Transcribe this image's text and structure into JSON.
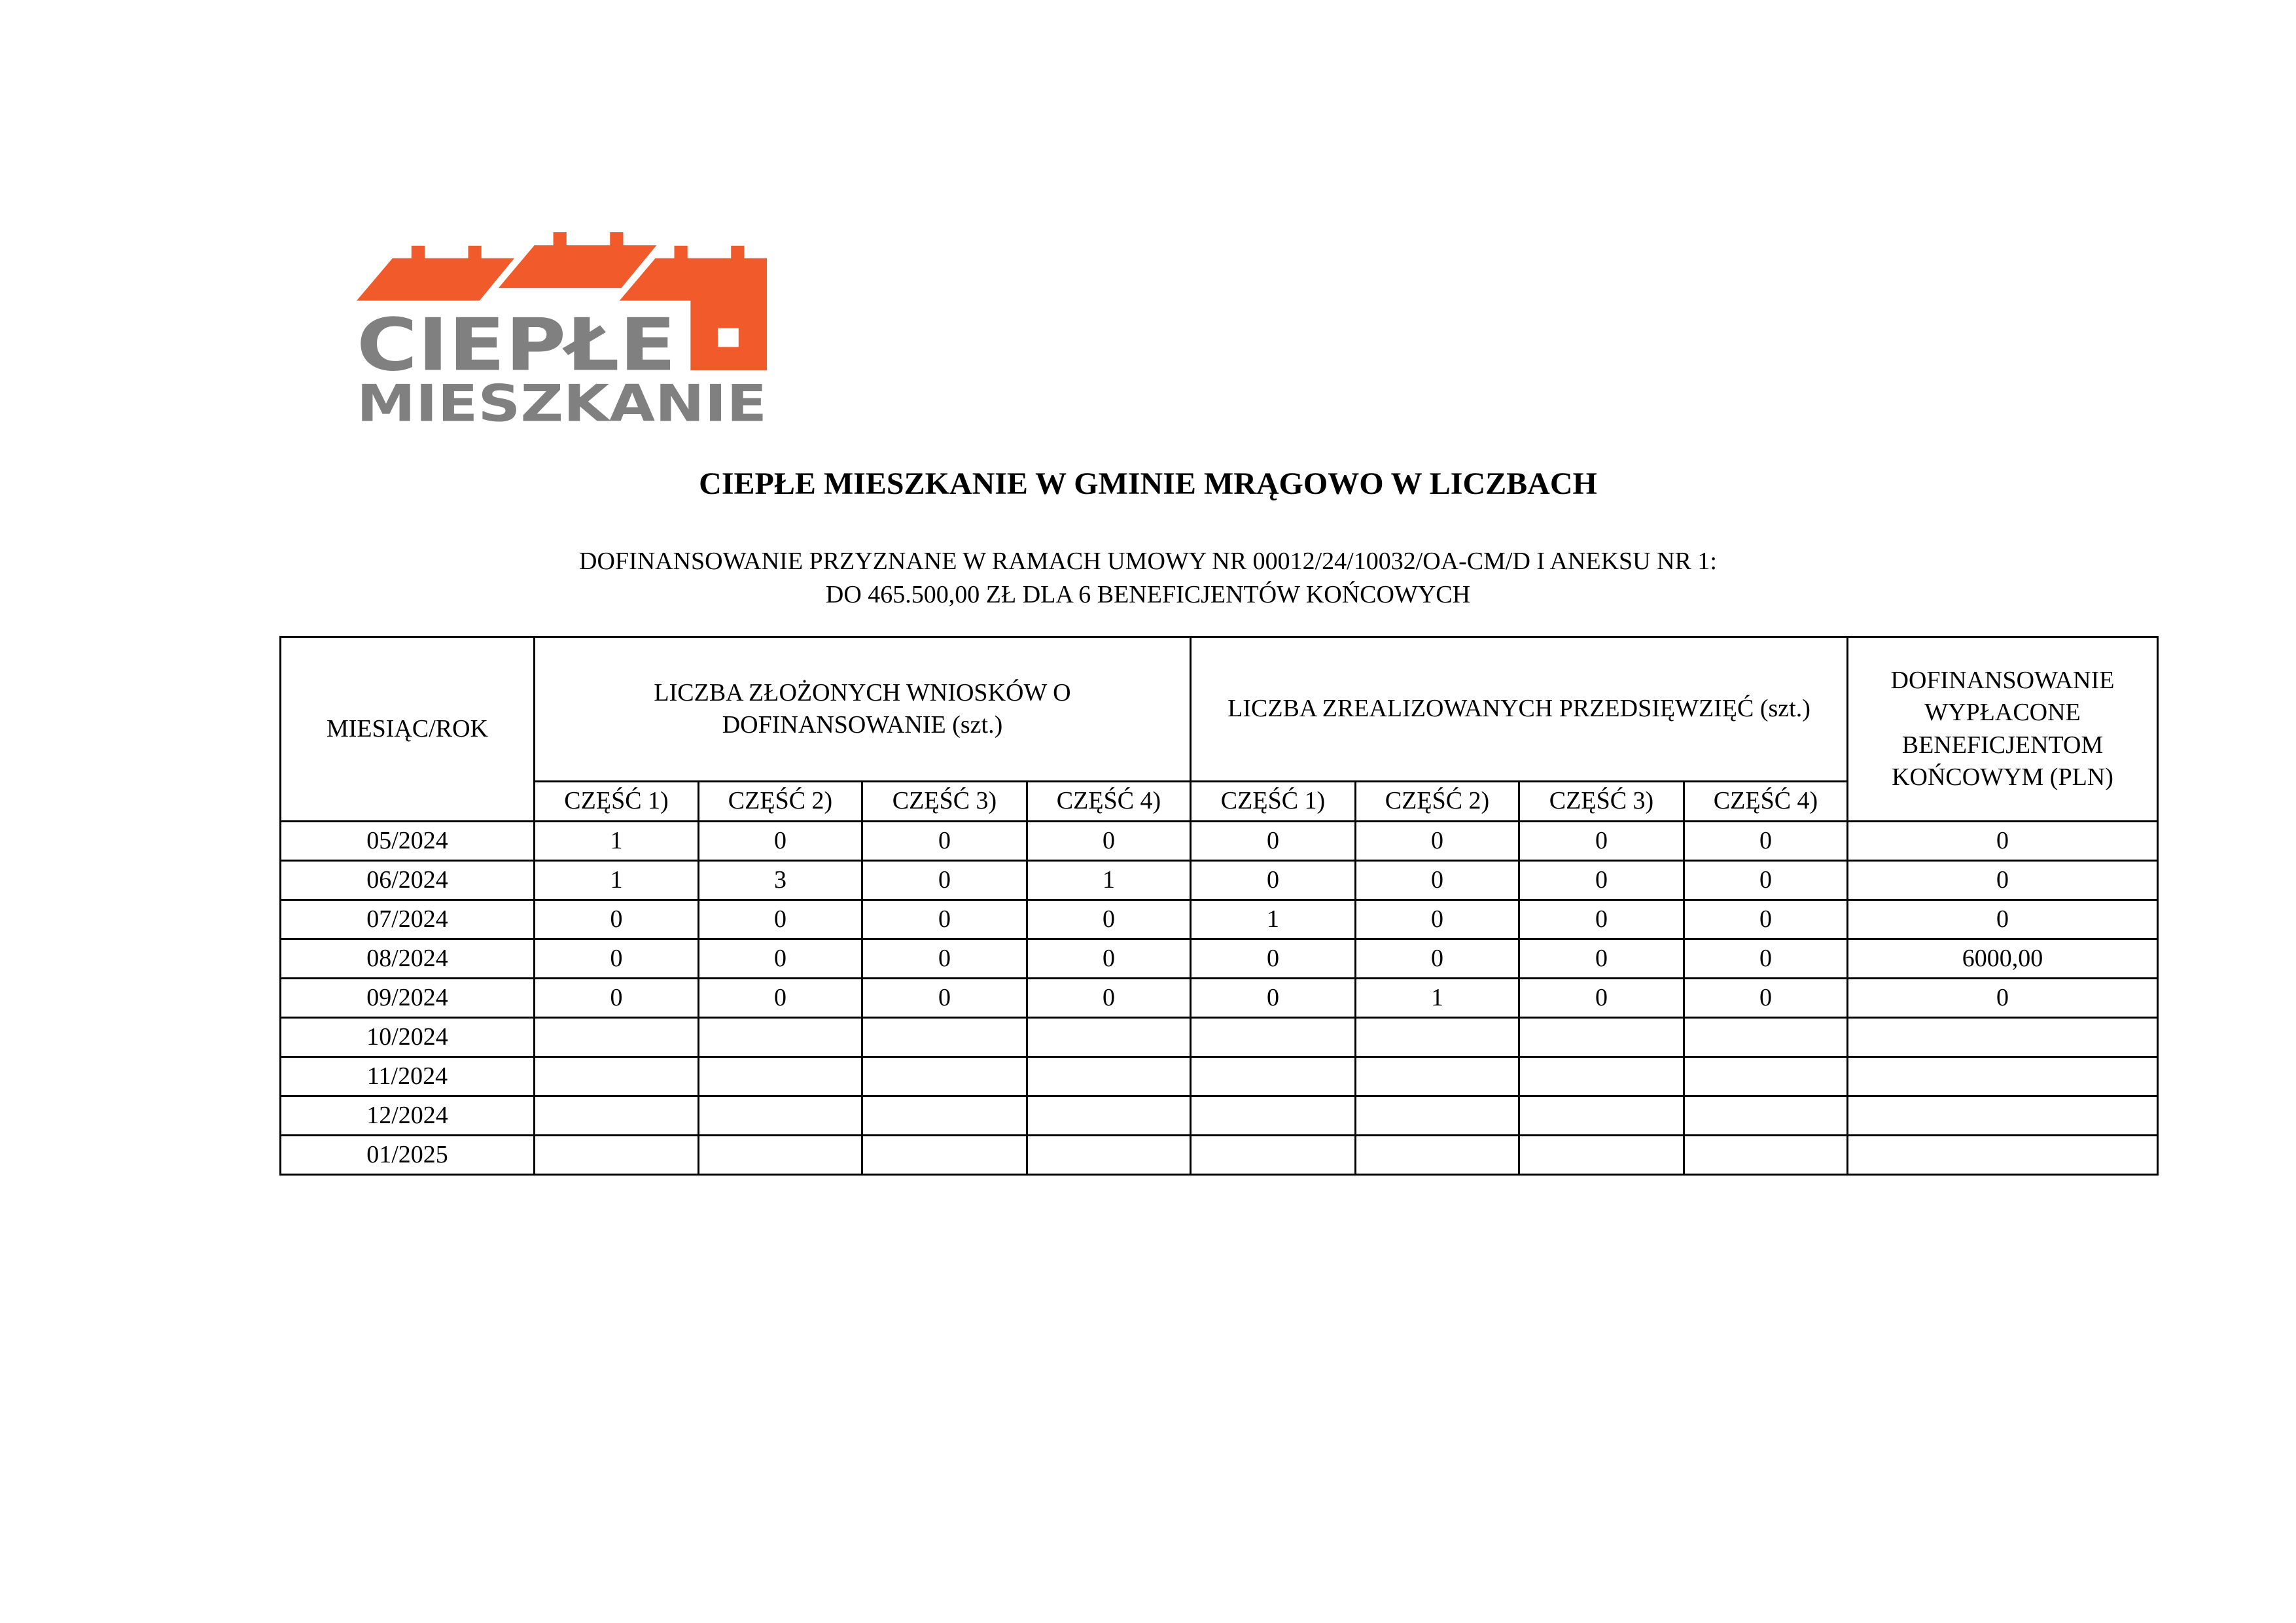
{
  "logo": {
    "line1": "CIEPŁE",
    "line2": "MIESZKANIE",
    "colors": {
      "orange": "#F15A2B",
      "gray": "#808080"
    }
  },
  "title": "CIEPŁE MIESZKANIE W GMINIE MRĄGOWO W LICZBACH",
  "subtitle_line1": "DOFINANSOWANIE PRZYZNANE W RAMACH UMOWY NR 00012/24/10032/OA-CM/D I ANEKSU NR 1:",
  "subtitle_line2": "DO 465.500,00 ZŁ DLA 6 BENEFICJENTÓW KOŃCOWYCH",
  "table": {
    "headers": {
      "month": "MIESIĄC/ROK",
      "applications": "LICZBA ZŁOŻONYCH WNIOSKÓW O DOFINANSOWANIE (szt.)",
      "projects": "LICZBA ZREALIZOWANYCH PRZEDSIĘWZIĘĆ (szt.)",
      "payout": "DOFINANSOWANIE WYPŁACONE BENEFICJENTOM KOŃCOWYM (PLN)",
      "parts": [
        "CZĘŚĆ 1)",
        "CZĘŚĆ 2)",
        "CZĘŚĆ 3)",
        "CZĘŚĆ 4)",
        "CZĘŚĆ 1)",
        "CZĘŚĆ 2)",
        "CZĘŚĆ 3)",
        "CZĘŚĆ 4)"
      ]
    },
    "rows": [
      [
        "05/2024",
        "1",
        "0",
        "0",
        "0",
        "0",
        "0",
        "0",
        "0",
        "0"
      ],
      [
        "06/2024",
        "1",
        "3",
        "0",
        "1",
        "0",
        "0",
        "0",
        "0",
        "0"
      ],
      [
        "07/2024",
        "0",
        "0",
        "0",
        "0",
        "1",
        "0",
        "0",
        "0",
        "0"
      ],
      [
        "08/2024",
        "0",
        "0",
        "0",
        "0",
        "0",
        "0",
        "0",
        "0",
        "6000,00"
      ],
      [
        "09/2024",
        "0",
        "0",
        "0",
        "0",
        "0",
        "1",
        "0",
        "0",
        "0"
      ],
      [
        "10/2024",
        "",
        "",
        "",
        "",
        "",
        "",
        "",
        "",
        ""
      ],
      [
        "11/2024",
        "",
        "",
        "",
        "",
        "",
        "",
        "",
        "",
        ""
      ],
      [
        "12/2024",
        "",
        "",
        "",
        "",
        "",
        "",
        "",
        "",
        ""
      ],
      [
        "01/2025",
        "",
        "",
        "",
        "",
        "",
        "",
        "",
        "",
        ""
      ]
    ]
  }
}
